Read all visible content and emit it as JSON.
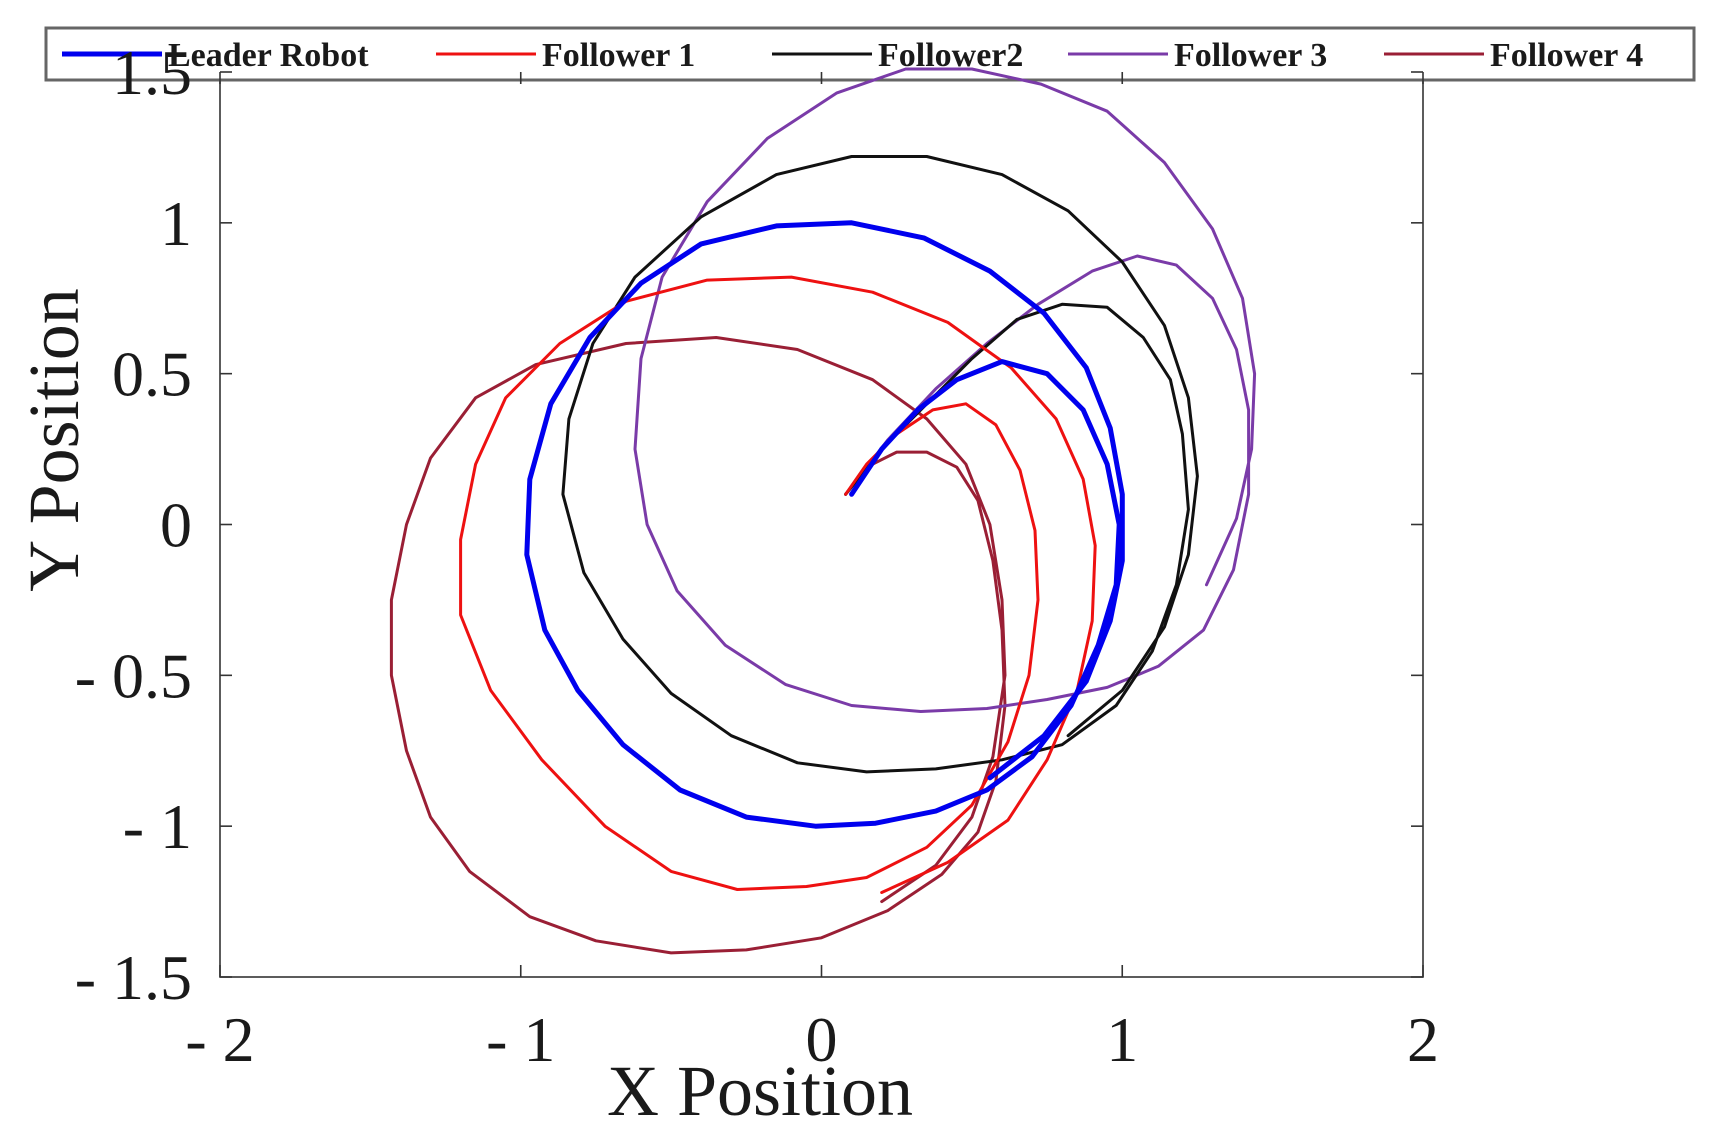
{
  "chart_data": {
    "type": "line",
    "title": "",
    "xlabel": "X Position",
    "ylabel": "Y Position",
    "xlim": [
      -2,
      2
    ],
    "ylim": [
      -1.5,
      1.5
    ],
    "grid": false,
    "legend_position": "top",
    "x_tick_values": [
      -2,
      -1,
      0,
      1,
      2
    ],
    "x_tick_labels": [
      "- 2",
      "- 1",
      "0",
      "1",
      "2"
    ],
    "y_tick_values": [
      1.5,
      1,
      0.5,
      0,
      -0.5,
      -1,
      -1.5
    ],
    "y_tick_labels": [
      "1.5",
      "1",
      "0.5",
      "0",
      "- 0.5",
      "- 1",
      "- 1.5"
    ],
    "series": [
      {
        "name": "Leader Robot",
        "color": "#0000ee",
        "points": [
          [
            0.1,
            0.1
          ],
          [
            0.2,
            0.25
          ],
          [
            0.32,
            0.38
          ],
          [
            0.45,
            0.48
          ],
          [
            0.6,
            0.54
          ],
          [
            0.75,
            0.5
          ],
          [
            0.87,
            0.38
          ],
          [
            0.95,
            0.2
          ],
          [
            0.99,
            0.0
          ],
          [
            0.98,
            -0.2
          ],
          [
            0.92,
            -0.4
          ],
          [
            0.83,
            -0.6
          ],
          [
            0.7,
            -0.77
          ],
          [
            0.55,
            -0.88
          ],
          [
            0.38,
            -0.95
          ],
          [
            0.18,
            -0.99
          ],
          [
            -0.02,
            -1.0
          ],
          [
            -0.25,
            -0.97
          ],
          [
            -0.47,
            -0.88
          ],
          [
            -0.66,
            -0.73
          ],
          [
            -0.81,
            -0.55
          ],
          [
            -0.92,
            -0.35
          ],
          [
            -0.98,
            -0.1
          ],
          [
            -0.97,
            0.15
          ],
          [
            -0.9,
            0.4
          ],
          [
            -0.77,
            0.62
          ],
          [
            -0.6,
            0.8
          ],
          [
            -0.4,
            0.93
          ],
          [
            -0.15,
            0.99
          ],
          [
            0.1,
            1.0
          ],
          [
            0.34,
            0.95
          ],
          [
            0.56,
            0.84
          ],
          [
            0.74,
            0.7
          ],
          [
            0.88,
            0.52
          ],
          [
            0.96,
            0.32
          ],
          [
            1.0,
            0.1
          ],
          [
            1.0,
            -0.12
          ],
          [
            0.96,
            -0.32
          ],
          [
            0.88,
            -0.52
          ],
          [
            0.74,
            -0.7
          ],
          [
            0.56,
            -0.84
          ]
        ]
      },
      {
        "name": "Follower 1",
        "color": "#ee1111",
        "points": [
          [
            0.08,
            0.1
          ],
          [
            0.15,
            0.2
          ],
          [
            0.25,
            0.3
          ],
          [
            0.37,
            0.38
          ],
          [
            0.48,
            0.4
          ],
          [
            0.58,
            0.33
          ],
          [
            0.66,
            0.18
          ],
          [
            0.71,
            -0.02
          ],
          [
            0.72,
            -0.25
          ],
          [
            0.69,
            -0.5
          ],
          [
            0.62,
            -0.72
          ],
          [
            0.5,
            -0.93
          ],
          [
            0.35,
            -1.07
          ],
          [
            0.15,
            -1.17
          ],
          [
            -0.05,
            -1.2
          ],
          [
            -0.28,
            -1.21
          ],
          [
            -0.5,
            -1.15
          ],
          [
            -0.72,
            -1.0
          ],
          [
            -0.93,
            -0.78
          ],
          [
            -1.1,
            -0.55
          ],
          [
            -1.2,
            -0.3
          ],
          [
            -1.2,
            -0.05
          ],
          [
            -1.15,
            0.2
          ],
          [
            -1.05,
            0.42
          ],
          [
            -0.87,
            0.6
          ],
          [
            -0.65,
            0.74
          ],
          [
            -0.38,
            0.81
          ],
          [
            -0.1,
            0.82
          ],
          [
            0.17,
            0.77
          ],
          [
            0.42,
            0.67
          ],
          [
            0.63,
            0.52
          ],
          [
            0.78,
            0.35
          ],
          [
            0.87,
            0.15
          ],
          [
            0.91,
            -0.07
          ],
          [
            0.9,
            -0.32
          ],
          [
            0.85,
            -0.55
          ],
          [
            0.75,
            -0.78
          ],
          [
            0.62,
            -0.98
          ],
          [
            0.42,
            -1.12
          ],
          [
            0.2,
            -1.22
          ]
        ]
      },
      {
        "name": "Follower2",
        "color": "#111111",
        "points": [
          [
            0.08,
            0.1
          ],
          [
            0.2,
            0.25
          ],
          [
            0.35,
            0.4
          ],
          [
            0.5,
            0.55
          ],
          [
            0.65,
            0.68
          ],
          [
            0.8,
            0.73
          ],
          [
            0.95,
            0.72
          ],
          [
            1.07,
            0.62
          ],
          [
            1.16,
            0.48
          ],
          [
            1.2,
            0.3
          ],
          [
            1.22,
            0.05
          ],
          [
            1.18,
            -0.2
          ],
          [
            1.1,
            -0.42
          ],
          [
            0.98,
            -0.6
          ],
          [
            0.8,
            -0.73
          ],
          [
            0.6,
            -0.78
          ],
          [
            0.38,
            -0.81
          ],
          [
            0.15,
            -0.82
          ],
          [
            -0.08,
            -0.79
          ],
          [
            -0.3,
            -0.7
          ],
          [
            -0.5,
            -0.56
          ],
          [
            -0.66,
            -0.38
          ],
          [
            -0.79,
            -0.16
          ],
          [
            -0.86,
            0.1
          ],
          [
            -0.84,
            0.35
          ],
          [
            -0.76,
            0.6
          ],
          [
            -0.62,
            0.82
          ],
          [
            -0.4,
            1.02
          ],
          [
            -0.15,
            1.16
          ],
          [
            0.1,
            1.22
          ],
          [
            0.35,
            1.22
          ],
          [
            0.6,
            1.16
          ],
          [
            0.82,
            1.04
          ],
          [
            1.0,
            0.87
          ],
          [
            1.14,
            0.66
          ],
          [
            1.22,
            0.42
          ],
          [
            1.25,
            0.16
          ],
          [
            1.22,
            -0.1
          ],
          [
            1.14,
            -0.34
          ],
          [
            1.0,
            -0.55
          ],
          [
            0.82,
            -0.7
          ]
        ]
      },
      {
        "name": "Follower 3",
        "color": "#7a3ba8",
        "points": [
          [
            0.08,
            0.1
          ],
          [
            0.22,
            0.28
          ],
          [
            0.38,
            0.45
          ],
          [
            0.55,
            0.6
          ],
          [
            0.72,
            0.73
          ],
          [
            0.9,
            0.84
          ],
          [
            1.05,
            0.89
          ],
          [
            1.18,
            0.86
          ],
          [
            1.3,
            0.75
          ],
          [
            1.38,
            0.58
          ],
          [
            1.42,
            0.38
          ],
          [
            1.42,
            0.1
          ],
          [
            1.37,
            -0.15
          ],
          [
            1.27,
            -0.35
          ],
          [
            1.12,
            -0.47
          ],
          [
            0.95,
            -0.54
          ],
          [
            0.75,
            -0.58
          ],
          [
            0.55,
            -0.61
          ],
          [
            0.33,
            -0.62
          ],
          [
            0.1,
            -0.6
          ],
          [
            -0.12,
            -0.53
          ],
          [
            -0.32,
            -0.4
          ],
          [
            -0.48,
            -0.22
          ],
          [
            -0.58,
            0.0
          ],
          [
            -0.62,
            0.25
          ],
          [
            -0.6,
            0.55
          ],
          [
            -0.53,
            0.82
          ],
          [
            -0.38,
            1.07
          ],
          [
            -0.18,
            1.28
          ],
          [
            0.05,
            1.43
          ],
          [
            0.28,
            1.51
          ],
          [
            0.5,
            1.51
          ],
          [
            0.73,
            1.46
          ],
          [
            0.95,
            1.37
          ],
          [
            1.14,
            1.2
          ],
          [
            1.3,
            0.98
          ],
          [
            1.4,
            0.75
          ],
          [
            1.44,
            0.5
          ],
          [
            1.43,
            0.25
          ],
          [
            1.38,
            0.02
          ],
          [
            1.28,
            -0.2
          ]
        ]
      },
      {
        "name": "Follower 4",
        "color": "#9a1f35",
        "points": [
          [
            0.08,
            0.1
          ],
          [
            0.12,
            0.15
          ],
          [
            0.17,
            0.2
          ],
          [
            0.25,
            0.24
          ],
          [
            0.35,
            0.24
          ],
          [
            0.45,
            0.19
          ],
          [
            0.52,
            0.08
          ],
          [
            0.57,
            -0.12
          ],
          [
            0.6,
            -0.35
          ],
          [
            0.61,
            -0.6
          ],
          [
            0.58,
            -0.85
          ],
          [
            0.52,
            -1.02
          ],
          [
            0.4,
            -1.16
          ],
          [
            0.22,
            -1.28
          ],
          [
            0.0,
            -1.37
          ],
          [
            -0.25,
            -1.41
          ],
          [
            -0.5,
            -1.42
          ],
          [
            -0.75,
            -1.38
          ],
          [
            -0.97,
            -1.3
          ],
          [
            -1.17,
            -1.15
          ],
          [
            -1.3,
            -0.97
          ],
          [
            -1.38,
            -0.75
          ],
          [
            -1.43,
            -0.5
          ],
          [
            -1.43,
            -0.25
          ],
          [
            -1.38,
            0.0
          ],
          [
            -1.3,
            0.22
          ],
          [
            -1.15,
            0.42
          ],
          [
            -0.95,
            0.53
          ],
          [
            -0.65,
            0.6
          ],
          [
            -0.35,
            0.62
          ],
          [
            -0.08,
            0.58
          ],
          [
            0.17,
            0.48
          ],
          [
            0.35,
            0.35
          ],
          [
            0.48,
            0.2
          ],
          [
            0.56,
            0.0
          ],
          [
            0.6,
            -0.25
          ],
          [
            0.61,
            -0.5
          ],
          [
            0.57,
            -0.77
          ],
          [
            0.5,
            -0.97
          ],
          [
            0.38,
            -1.13
          ],
          [
            0.2,
            -1.25
          ]
        ]
      }
    ]
  }
}
